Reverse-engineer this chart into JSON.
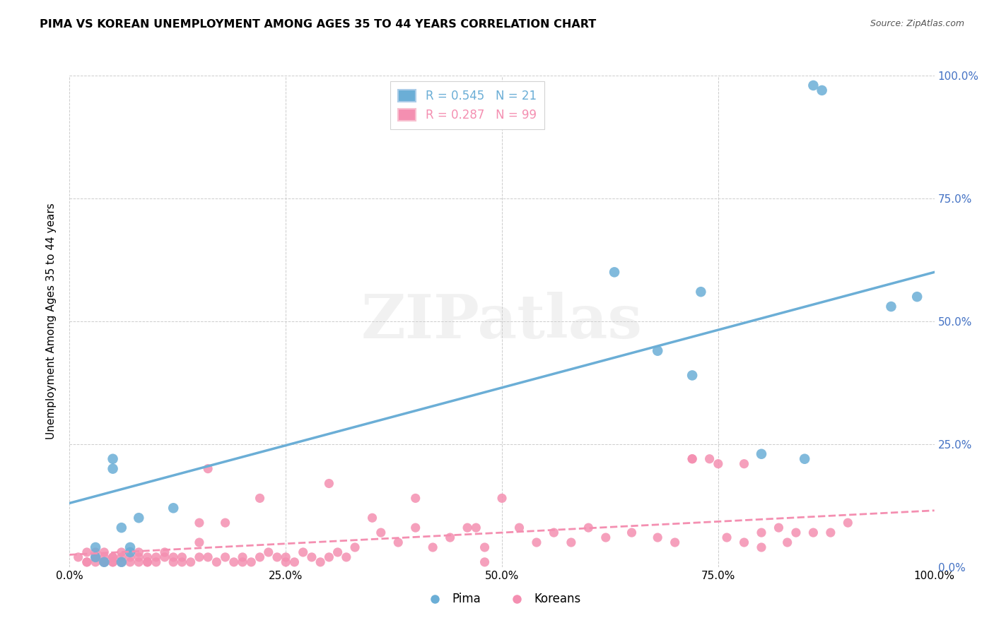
{
  "title": "PIMA VS KOREAN UNEMPLOYMENT AMONG AGES 35 TO 44 YEARS CORRELATION CHART",
  "source": "Source: ZipAtlas.com",
  "ylabel": "Unemployment Among Ages 35 to 44 years",
  "xlim": [
    0,
    1
  ],
  "ylim": [
    0,
    1
  ],
  "xtick_labels": [
    "0.0%",
    "25.0%",
    "50.0%",
    "75.0%",
    "100.0%"
  ],
  "xtick_vals": [
    0,
    0.25,
    0.5,
    0.75,
    1.0
  ],
  "ytick_labels": [
    "0.0%",
    "25.0%",
    "50.0%",
    "75.0%",
    "100.0%"
  ],
  "ytick_vals": [
    0,
    0.25,
    0.5,
    0.75,
    1.0
  ],
  "pima_color": "#6baed6",
  "korean_color": "#f48fb1",
  "pima_R": 0.545,
  "pima_N": 21,
  "korean_R": 0.287,
  "korean_N": 99,
  "pima_scatter_x": [
    0.03,
    0.03,
    0.04,
    0.05,
    0.05,
    0.06,
    0.06,
    0.07,
    0.07,
    0.08,
    0.12,
    0.63,
    0.68,
    0.72,
    0.73,
    0.8,
    0.85,
    0.86,
    0.87,
    0.95,
    0.98
  ],
  "pima_scatter_y": [
    0.04,
    0.02,
    0.01,
    0.2,
    0.22,
    0.01,
    0.08,
    0.03,
    0.04,
    0.1,
    0.12,
    0.6,
    0.44,
    0.39,
    0.56,
    0.23,
    0.22,
    0.98,
    0.97,
    0.53,
    0.55
  ],
  "korean_scatter_x": [
    0.01,
    0.02,
    0.02,
    0.02,
    0.03,
    0.03,
    0.03,
    0.03,
    0.04,
    0.04,
    0.04,
    0.04,
    0.05,
    0.05,
    0.05,
    0.05,
    0.06,
    0.06,
    0.06,
    0.07,
    0.07,
    0.08,
    0.08,
    0.08,
    0.09,
    0.09,
    0.09,
    0.1,
    0.1,
    0.11,
    0.11,
    0.12,
    0.12,
    0.13,
    0.13,
    0.14,
    0.15,
    0.15,
    0.15,
    0.16,
    0.17,
    0.18,
    0.19,
    0.2,
    0.2,
    0.21,
    0.22,
    0.23,
    0.24,
    0.25,
    0.25,
    0.26,
    0.27,
    0.28,
    0.29,
    0.3,
    0.31,
    0.32,
    0.33,
    0.35,
    0.36,
    0.38,
    0.4,
    0.42,
    0.44,
    0.46,
    0.48,
    0.5,
    0.52,
    0.54,
    0.56,
    0.58,
    0.6,
    0.62,
    0.65,
    0.68,
    0.7,
    0.72,
    0.74,
    0.76,
    0.78,
    0.8,
    0.82,
    0.84,
    0.86,
    0.88,
    0.9,
    0.72,
    0.75,
    0.78,
    0.8,
    0.83,
    0.16,
    0.18,
    0.22,
    0.3,
    0.4,
    0.47,
    0.48
  ],
  "korean_scatter_y": [
    0.02,
    0.01,
    0.03,
    0.01,
    0.02,
    0.01,
    0.03,
    0.02,
    0.01,
    0.02,
    0.01,
    0.03,
    0.01,
    0.02,
    0.01,
    0.02,
    0.01,
    0.02,
    0.03,
    0.01,
    0.02,
    0.01,
    0.02,
    0.03,
    0.01,
    0.02,
    0.01,
    0.02,
    0.01,
    0.02,
    0.03,
    0.01,
    0.02,
    0.01,
    0.02,
    0.01,
    0.09,
    0.05,
    0.02,
    0.02,
    0.01,
    0.02,
    0.01,
    0.02,
    0.01,
    0.01,
    0.02,
    0.03,
    0.02,
    0.01,
    0.02,
    0.01,
    0.03,
    0.02,
    0.01,
    0.02,
    0.03,
    0.02,
    0.04,
    0.1,
    0.07,
    0.05,
    0.08,
    0.04,
    0.06,
    0.08,
    0.04,
    0.14,
    0.08,
    0.05,
    0.07,
    0.05,
    0.08,
    0.06,
    0.07,
    0.06,
    0.05,
    0.22,
    0.22,
    0.06,
    0.05,
    0.07,
    0.08,
    0.07,
    0.07,
    0.07,
    0.09,
    0.22,
    0.21,
    0.21,
    0.04,
    0.05,
    0.2,
    0.09,
    0.14,
    0.17,
    0.14,
    0.08,
    0.01
  ],
  "pima_line_x": [
    0,
    1.0
  ],
  "pima_line_y": [
    0.13,
    0.6
  ],
  "korean_line_x": [
    0,
    1.0
  ],
  "korean_line_y": [
    0.025,
    0.115
  ],
  "watermark": "ZIPatlas",
  "background_color": "#ffffff",
  "grid_color": "#cccccc"
}
